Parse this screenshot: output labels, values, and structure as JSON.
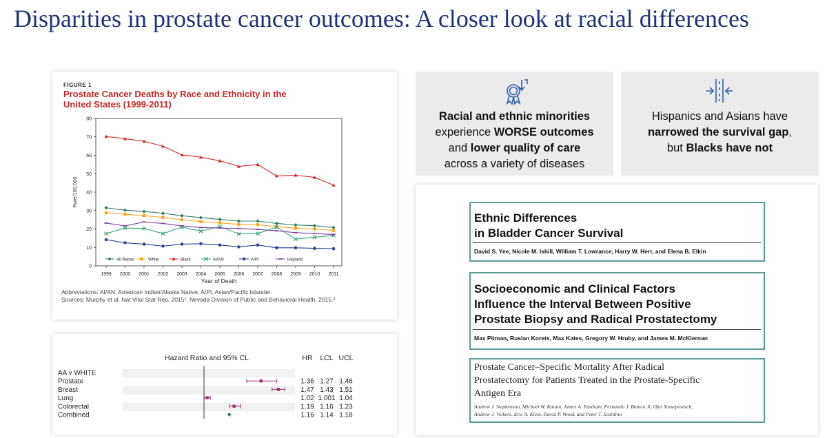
{
  "slide": {
    "title": "Disparities in prostate cancer outcomes: A closer look at racial differences"
  },
  "figure1": {
    "label": "FIGURE 1",
    "title": "Prostate Cancer Deaths by Race and Ethnicity in the United States (1999-2011)",
    "abbreviations": "Abbreviations: AI/AN, American Indian/Alaska Native; A/PI, Asian/Pacific Islander.",
    "sources": "Sources: Murphy et al. Nat Vital Stat Rep. 2015¹; Nevada Division of Public and Behavioral Health. 2015.²"
  },
  "chart_data": {
    "type": "line",
    "title": "Prostate Cancer Deaths by Race and Ethnicity in the United States (1999-2011)",
    "xlabel": "Year of Death",
    "ylabel": "Rate/100,000",
    "ylim": [
      0,
      80
    ],
    "yticks": [
      "0",
      "10",
      "20",
      "30",
      "40",
      "50",
      "60",
      "70",
      "80"
    ],
    "grid": false,
    "legend_position": "bottom-inside",
    "x": [
      "1999",
      "2000",
      "2001",
      "2002",
      "2003",
      "2004",
      "2005",
      "2006",
      "2007",
      "2008",
      "2009",
      "2010",
      "2011"
    ],
    "series": [
      {
        "name": "All Races",
        "color": "#2e7d5b",
        "marker": "diamond",
        "values": [
          31.5,
          30.2,
          29.5,
          28.5,
          27.2,
          26.2,
          25.2,
          24.3,
          24.3,
          23.0,
          22.2,
          21.8,
          20.8
        ]
      },
      {
        "name": "White",
        "color": "#f5a623",
        "marker": "square",
        "values": [
          28.8,
          28.0,
          27.2,
          26.3,
          25.0,
          24.0,
          23.3,
          22.5,
          22.3,
          21.3,
          20.4,
          20.0,
          19.2
        ]
      },
      {
        "name": "Black",
        "color": "#d62728",
        "marker": "triangle",
        "values": [
          70.2,
          69.0,
          67.6,
          64.9,
          60.2,
          59.0,
          57.0,
          54.0,
          55.0,
          48.8,
          49.2,
          48.0,
          43.8
        ]
      },
      {
        "name": "AI/AN",
        "color": "#3aa37a",
        "marker": "x",
        "values": [
          17.5,
          20.5,
          20.3,
          17.5,
          21.0,
          18.8,
          21.3,
          17.3,
          17.5,
          21.0,
          14.5,
          15.5,
          16.5
        ]
      },
      {
        "name": "A/PI",
        "color": "#1f3c88",
        "marker": "star",
        "values": [
          14.2,
          12.5,
          11.8,
          10.7,
          11.8,
          12.0,
          11.3,
          10.3,
          11.3,
          9.8,
          9.8,
          9.5,
          9.3
        ]
      },
      {
        "name": "Hispanic",
        "color": "#7b3f9e",
        "marker": "dash",
        "values": [
          23.2,
          21.7,
          23.8,
          23.0,
          21.7,
          20.8,
          20.5,
          20.3,
          19.8,
          19.0,
          18.0,
          17.5,
          17.0
        ]
      }
    ]
  },
  "forest": {
    "header": "Hazard Ratio and 95% CL",
    "col_hr": "HR",
    "col_lcl": "LCL",
    "col_ucl": "UCL",
    "group_label": "AA v WHITE",
    "rows": [
      {
        "label": "Prostate",
        "hr": "1.36",
        "lcl": "1.27",
        "ucl": "1.46",
        "v": 1.36,
        "lo": 1.27,
        "hi": 1.46
      },
      {
        "label": "Breast",
        "hr": "1.47",
        "lcl": "1.43",
        "ucl": "1.51",
        "v": 1.47,
        "lo": 1.43,
        "hi": 1.51
      },
      {
        "label": "Lung",
        "hr": "1.02",
        "lcl": "1.001",
        "ucl": "1.04",
        "v": 1.02,
        "lo": 1.001,
        "hi": 1.04
      },
      {
        "label": "Colorectal",
        "hr": "1.19",
        "lcl": "1.16",
        "ucl": "1.23",
        "v": 1.19,
        "lo": 1.16,
        "hi": 1.23
      },
      {
        "label": "Combined",
        "hr": "1.16",
        "lcl": "1.14",
        "ucl": "1.18",
        "v": 1.16,
        "lo": 1.14,
        "hi": 1.18
      }
    ],
    "marker_color": "#a0306e",
    "combined_color": "#2e7d5b"
  },
  "keypoints": [
    {
      "icon": "award-ribbon-icon",
      "parts": [
        {
          "t": "Racial and ethnic minorities",
          "b": true,
          "br": true
        },
        {
          "t": "experience ",
          "b": false
        },
        {
          "t": "WORSE outcomes",
          "b": true,
          "br": true
        },
        {
          "t": "and ",
          "b": false
        },
        {
          "t": "lower quality of care",
          "b": true,
          "br": true
        },
        {
          "t": "across a variety of diseases",
          "b": false
        }
      ]
    },
    {
      "icon": "converging-road-icon",
      "parts": [
        {
          "t": "Hispanics and Asians have",
          "b": false,
          "br": true
        },
        {
          "t": "narrowed the survival gap",
          "b": true
        },
        {
          "t": ",",
          "b": false,
          "br": true
        },
        {
          "t": "but ",
          "b": false
        },
        {
          "t": "Blacks have not",
          "b": true
        }
      ]
    }
  ],
  "papers": [
    {
      "title_line1": "Ethnic Differences",
      "title_line2": "in Bladder Cancer Survival",
      "authors": "David S. Yee, Nicole M. Ishill, William T. Lowrance, Harry W. Herr, and Elena B. Elkin"
    },
    {
      "title_line1": "Socioeconomic and Clinical Factors",
      "title_line2": "Influence the Interval Between Positive",
      "title_line3": "Prostate Biopsy and Radical Prostatectomy",
      "authors": "Max Pitman, Ruslan Korets, Max Kates, Gregory W. Hruby, and James M. McKiernan"
    },
    {
      "title_line1": "Prostate Cancer–Specific Mortality After Radical",
      "title_line2": "Prostatectomy for Patients Treated in the Prostate-Specific",
      "title_line3": "Antigen Era",
      "authors_line1": "Andrew J. Stephenson, Michael W. Kattan, James A. Eastham, Fernando J. Bianco Jr, Ofer Yossepowitch,",
      "authors_line2": "Andrew J. Vickers, Eric A. Klein, David P. Wood, and Peter T. Scardino"
    }
  ]
}
